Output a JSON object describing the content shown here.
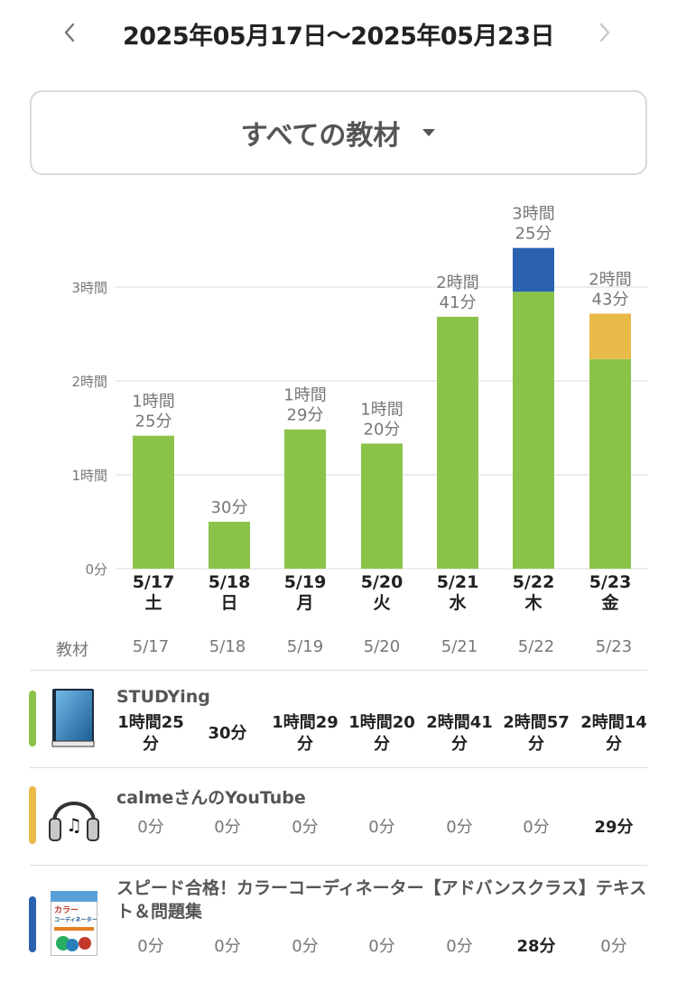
{
  "header": {
    "date_range": "2025年05月17日〜2025年05月23日",
    "prev_icon": "chevron-left-icon",
    "next_icon": "chevron-right-icon"
  },
  "selector": {
    "label": "すべての教材",
    "caret_icon": "caret-down-icon"
  },
  "colors": {
    "studying": "#8bc34a",
    "youtube": "#e9b949",
    "speed": "#2b62b0",
    "grid": "#d8d8d8",
    "muted_text": "#777777"
  },
  "chart_data": {
    "type": "bar",
    "stacked": true,
    "unit": "minutes",
    "categories": [
      "5/17",
      "5/18",
      "5/19",
      "5/20",
      "5/21",
      "5/22",
      "5/23"
    ],
    "weekdays": [
      "土",
      "日",
      "月",
      "火",
      "水",
      "木",
      "金"
    ],
    "series": [
      {
        "key": "studying",
        "color": "#8bc34a",
        "values": [
          85,
          30,
          89,
          80,
          161,
          177,
          134
        ]
      },
      {
        "key": "youtube",
        "color": "#e9b949",
        "values": [
          0,
          0,
          0,
          0,
          0,
          0,
          29
        ]
      },
      {
        "key": "speed",
        "color": "#2b62b0",
        "values": [
          0,
          0,
          0,
          0,
          0,
          28,
          0
        ]
      }
    ],
    "totals_labels": [
      [
        "1時間",
        "25分"
      ],
      [
        "30分"
      ],
      [
        "1時間",
        "29分"
      ],
      [
        "1時間",
        "20分"
      ],
      [
        "2時間",
        "41分"
      ],
      [
        "3時間",
        "25分"
      ],
      [
        "2時間",
        "43分"
      ]
    ],
    "yticks": [
      {
        "value": 0,
        "label": "0分"
      },
      {
        "value": 60,
        "label": "1時間"
      },
      {
        "value": 120,
        "label": "2時間"
      },
      {
        "value": 180,
        "label": "3時間"
      }
    ],
    "ylim": [
      0,
      180
    ],
    "grid": true
  },
  "table": {
    "header_label": "教材",
    "dates": [
      "5/17",
      "5/18",
      "5/19",
      "5/20",
      "5/21",
      "5/22",
      "5/23"
    ],
    "rows": [
      {
        "title": "STUDYing",
        "color": "#8bc34a",
        "icon": "book-icon",
        "cells": [
          {
            "text": "1時間25\n分",
            "zero": false
          },
          {
            "text": "30分",
            "zero": false
          },
          {
            "text": "1時間29\n分",
            "zero": false
          },
          {
            "text": "1時間20\n分",
            "zero": false
          },
          {
            "text": "2時間41\n分",
            "zero": false
          },
          {
            "text": "2時間57\n分",
            "zero": false
          },
          {
            "text": "2時間14\n分",
            "zero": false
          }
        ]
      },
      {
        "title": "calmeさんのYouTube",
        "color": "#e9b949",
        "icon": "headphones-icon",
        "cells": [
          {
            "text": "0分",
            "zero": true
          },
          {
            "text": "0分",
            "zero": true
          },
          {
            "text": "0分",
            "zero": true
          },
          {
            "text": "0分",
            "zero": true
          },
          {
            "text": "0分",
            "zero": true
          },
          {
            "text": "0分",
            "zero": true
          },
          {
            "text": "29分",
            "zero": false
          }
        ]
      },
      {
        "title": "スピード合格！カラーコーディネーター【アドバンスクラス】テキスト＆問題集",
        "color": "#2b62b0",
        "icon": "textbook-cover-icon",
        "cover_text": [
          "カラー",
          "コーディネーター"
        ],
        "cells": [
          {
            "text": "0分",
            "zero": true
          },
          {
            "text": "0分",
            "zero": true
          },
          {
            "text": "0分",
            "zero": true
          },
          {
            "text": "0分",
            "zero": true
          },
          {
            "text": "0分",
            "zero": true
          },
          {
            "text": "28分",
            "zero": false
          },
          {
            "text": "0分",
            "zero": true
          }
        ]
      }
    ]
  }
}
